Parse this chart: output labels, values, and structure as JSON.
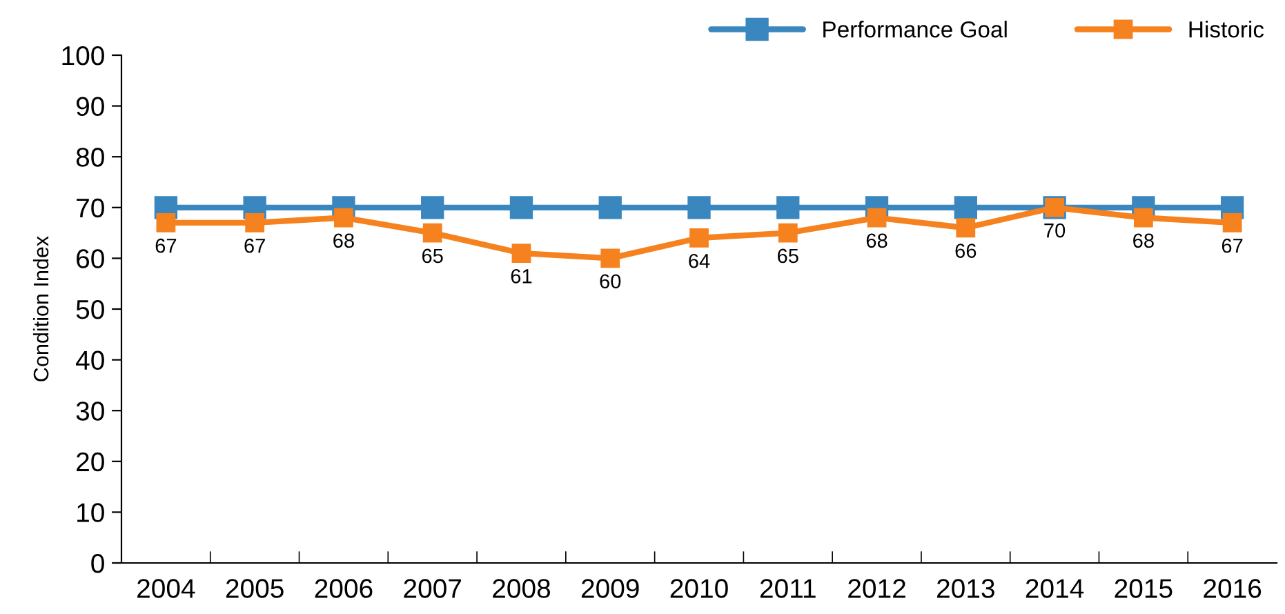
{
  "chart_data": {
    "type": "line",
    "ylabel": "Condition Index",
    "categories": [
      "2004",
      "2005",
      "2006",
      "2007",
      "2008",
      "2009",
      "2010",
      "2011",
      "2012",
      "2013",
      "2014",
      "2015",
      "2016"
    ],
    "series": [
      {
        "name": "Performance Goal",
        "color": "#3a87c0",
        "values": [
          70,
          70,
          70,
          70,
          70,
          70,
          70,
          70,
          70,
          70,
          70,
          70,
          70
        ]
      },
      {
        "name": "Historic",
        "color": "#f5821f",
        "values": [
          67,
          67,
          68,
          65,
          61,
          60,
          64,
          65,
          68,
          66,
          70,
          68,
          67
        ],
        "value_labels": [
          "67",
          "67",
          "68",
          "65",
          "61",
          "60",
          "64",
          "65",
          "68",
          "66",
          "70",
          "68",
          "67"
        ]
      }
    ],
    "ylim": [
      0,
      100
    ],
    "yticks": [
      0,
      10,
      20,
      30,
      40,
      50,
      60,
      70,
      80,
      90,
      100
    ],
    "grid": false,
    "legend": "top right",
    "marker": "square",
    "line_style": "solid"
  }
}
